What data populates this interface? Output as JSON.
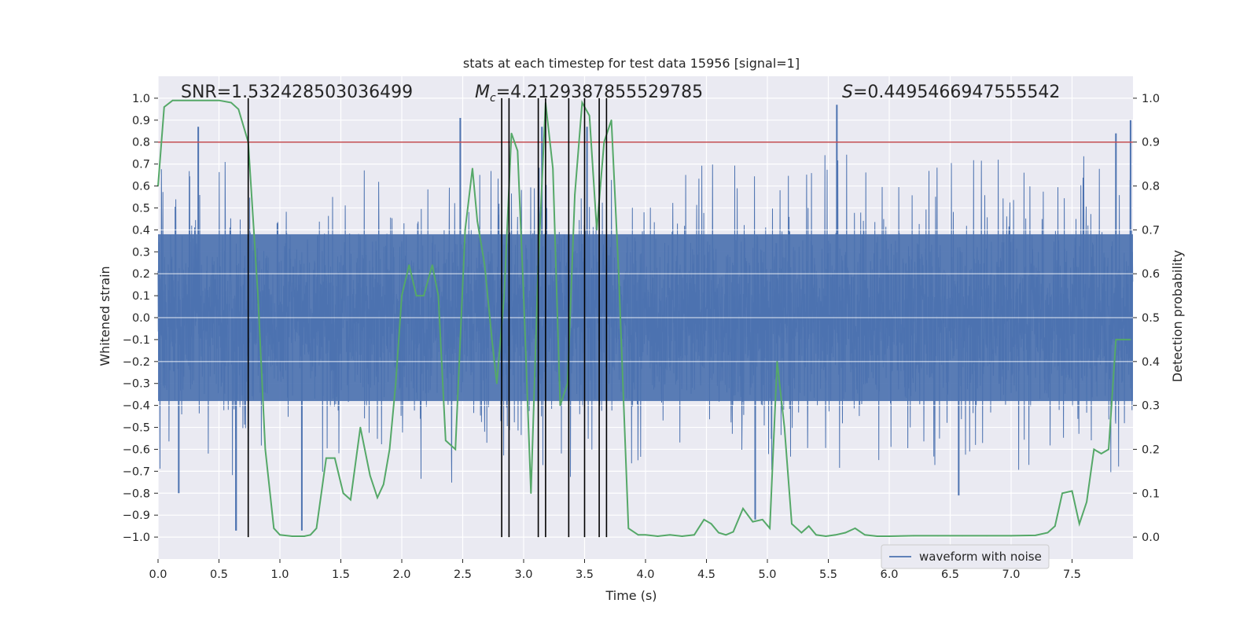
{
  "chart_data": {
    "type": "line",
    "title": "stats at each timestep for test data 15956 [signal=1]",
    "xlabel": "Time (s)",
    "ylabel_left": "Whitened strain",
    "ylabel_right": "Detection probability",
    "xlim": [
      0,
      8
    ],
    "ylim_left": [
      -1.1,
      1.1
    ],
    "ylim_right": [
      -0.05,
      1.05
    ],
    "x_ticks": [
      "0.0",
      "0.5",
      "1.0",
      "1.5",
      "2.0",
      "2.5",
      "3.0",
      "3.5",
      "4.0",
      "4.5",
      "5.0",
      "5.5",
      "6.0",
      "6.5",
      "7.0",
      "7.5"
    ],
    "x_tick_values": [
      0,
      0.5,
      1,
      1.5,
      2,
      2.5,
      3,
      3.5,
      4,
      4.5,
      5,
      5.5,
      6,
      6.5,
      7,
      7.5
    ],
    "y_left_ticks": [
      "1.0",
      "0.9",
      "0.8",
      "0.7",
      "0.6",
      "0.5",
      "0.4",
      "0.3",
      "0.2",
      "0.1",
      "0.0",
      "−0.1",
      "−0.2",
      "−0.3",
      "−0.4",
      "−0.5",
      "−0.6",
      "−0.7",
      "−0.8",
      "−0.9",
      "−1.0"
    ],
    "y_left_tick_values": [
      1.0,
      0.9,
      0.8,
      0.7,
      0.6,
      0.5,
      0.4,
      0.3,
      0.2,
      0.1,
      0.0,
      -0.1,
      -0.2,
      -0.3,
      -0.4,
      -0.5,
      -0.6,
      -0.7,
      -0.8,
      -0.9,
      -1.0
    ],
    "y_right_ticks": [
      "1.0",
      "0.9",
      "0.8",
      "0.7",
      "0.6",
      "0.5",
      "0.4",
      "0.3",
      "0.2",
      "0.1",
      "0.0"
    ],
    "y_right_tick_values": [
      1.0,
      0.9,
      0.8,
      0.7,
      0.6,
      0.5,
      0.4,
      0.3,
      0.2,
      0.1,
      0.0
    ],
    "threshold": {
      "axis": "right",
      "value": 0.9,
      "color": "#c44e52"
    },
    "annotations": {
      "snr": "SNR=1.532428503036499",
      "mc_symbol": "M",
      "mc_sub": "c",
      "mc_value": "=4.212938785552978 5",
      "s_symbol": "S",
      "s_value": "=0.4495466947555542"
    },
    "vertical_lines_s": [
      0.74,
      2.82,
      2.88,
      3.12,
      3.18,
      3.37,
      3.5,
      3.62,
      3.68
    ],
    "series": [
      {
        "name": "waveform with noise",
        "axis": "left",
        "color": "#4c72b0",
        "description": "dense noisy whitened strain, roughly within ±0.6 with spikes to ±1.0",
        "envelope_note": "rendered as dense vertical strokes",
        "spikes": [
          {
            "t": 0.33,
            "v": 0.87
          },
          {
            "t": 0.64,
            "v": -0.97
          },
          {
            "t": 0.64,
            "v": -0.97
          },
          {
            "t": 0.98,
            "v": 0.43
          },
          {
            "t": 1.18,
            "v": -0.97
          },
          {
            "t": 2.48,
            "v": 0.91
          },
          {
            "t": 3.15,
            "v": 0.87
          },
          {
            "t": 3.52,
            "v": 0.87
          },
          {
            "t": 4.9,
            "v": -0.92
          },
          {
            "t": 5.57,
            "v": 0.97
          },
          {
            "t": 7.86,
            "v": 0.84
          },
          {
            "t": 7.98,
            "v": 0.9
          },
          {
            "t": 0.17,
            "v": -0.8
          },
          {
            "t": 6.57,
            "v": -0.81
          }
        ]
      },
      {
        "name": "detection probability",
        "axis": "right",
        "color": "#55a868",
        "x": [
          0.0,
          0.05,
          0.12,
          0.2,
          0.3,
          0.4,
          0.5,
          0.6,
          0.66,
          0.74,
          0.82,
          0.88,
          0.95,
          1.0,
          1.1,
          1.2,
          1.25,
          1.3,
          1.38,
          1.45,
          1.52,
          1.58,
          1.66,
          1.74,
          1.8,
          1.85,
          1.9,
          1.95,
          2.0,
          2.06,
          2.12,
          2.18,
          2.25,
          2.3,
          2.36,
          2.44,
          2.52,
          2.58,
          2.62,
          2.68,
          2.74,
          2.78,
          2.84,
          2.9,
          2.95,
          3.0,
          3.06,
          3.12,
          3.18,
          3.24,
          3.3,
          3.36,
          3.42,
          3.48,
          3.54,
          3.6,
          3.66,
          3.72,
          3.78,
          3.86,
          3.94,
          4.0,
          4.1,
          4.2,
          4.3,
          4.4,
          4.48,
          4.54,
          4.6,
          4.66,
          4.72,
          4.8,
          4.88,
          4.96,
          5.02,
          5.08,
          5.14,
          5.2,
          5.28,
          5.34,
          5.4,
          5.48,
          5.56,
          5.64,
          5.72,
          5.8,
          5.9,
          6.0,
          6.2,
          6.4,
          6.6,
          6.8,
          7.0,
          7.2,
          7.3,
          7.36,
          7.42,
          7.5,
          7.56,
          7.62,
          7.68,
          7.74,
          7.8,
          7.86,
          7.92,
          7.98
        ],
        "values": [
          0.8,
          0.98,
          0.995,
          0.995,
          0.995,
          0.995,
          0.995,
          0.99,
          0.975,
          0.9,
          0.55,
          0.2,
          0.02,
          0.005,
          0.002,
          0.002,
          0.005,
          0.02,
          0.18,
          0.18,
          0.1,
          0.085,
          0.25,
          0.14,
          0.09,
          0.12,
          0.2,
          0.35,
          0.55,
          0.62,
          0.55,
          0.55,
          0.62,
          0.55,
          0.22,
          0.2,
          0.7,
          0.84,
          0.72,
          0.62,
          0.45,
          0.35,
          0.55,
          0.92,
          0.88,
          0.55,
          0.1,
          0.62,
          0.99,
          0.84,
          0.3,
          0.35,
          0.78,
          0.99,
          0.96,
          0.7,
          0.9,
          0.95,
          0.6,
          0.02,
          0.005,
          0.005,
          0.002,
          0.005,
          0.002,
          0.005,
          0.04,
          0.03,
          0.01,
          0.005,
          0.012,
          0.065,
          0.035,
          0.04,
          0.02,
          0.4,
          0.25,
          0.03,
          0.01,
          0.025,
          0.005,
          0.002,
          0.005,
          0.01,
          0.02,
          0.005,
          0.002,
          0.002,
          0.003,
          0.003,
          0.003,
          0.003,
          0.003,
          0.004,
          0.01,
          0.025,
          0.1,
          0.105,
          0.03,
          0.08,
          0.2,
          0.19,
          0.2,
          0.45,
          0.45,
          0.45
        ]
      }
    ],
    "legend": {
      "label": "waveform with noise",
      "placement": "lower-right"
    }
  }
}
